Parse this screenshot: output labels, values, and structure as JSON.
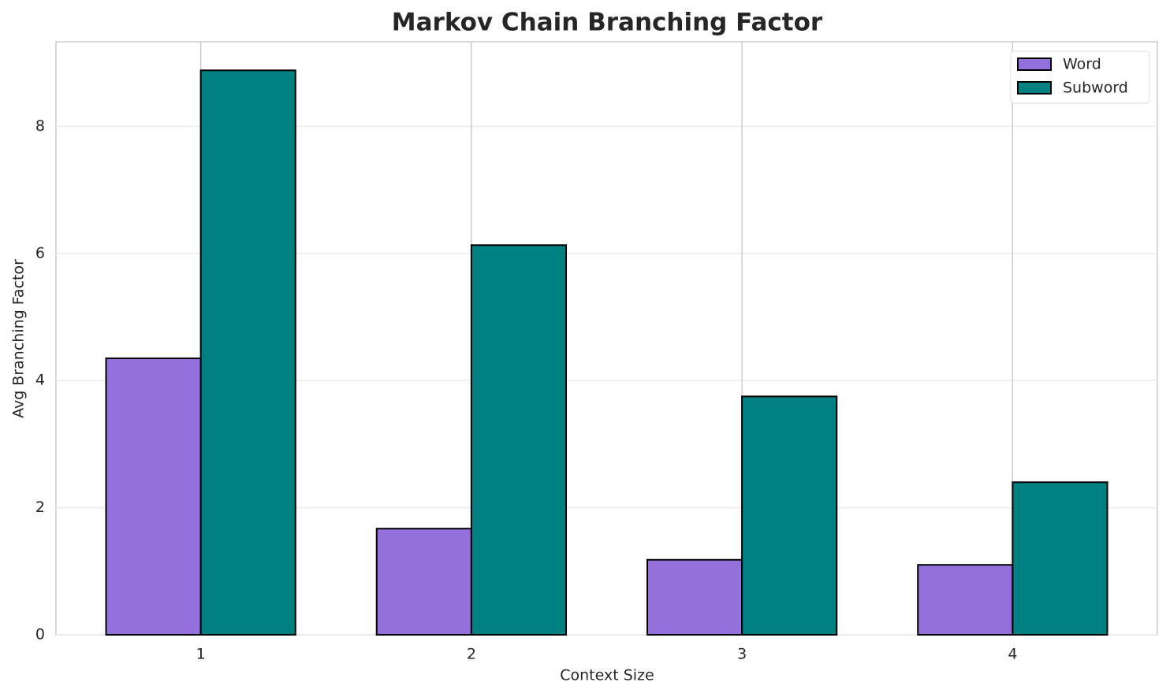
{
  "chart_data": {
    "type": "bar",
    "title": "Markov Chain Branching Factor",
    "x_label": "Context Size",
    "y_label": "Avg Branching Factor",
    "categories": [
      "1",
      "2",
      "3",
      "4"
    ],
    "series": [
      {
        "name": "Word",
        "color": "#9370db",
        "values": [
          4.35,
          1.67,
          1.18,
          1.1
        ]
      },
      {
        "name": "Subword",
        "color": "#008080",
        "values": [
          8.88,
          6.13,
          3.75,
          2.4
        ]
      }
    ],
    "ylim": [
      0,
      9.33
    ],
    "yticks": [
      0,
      2,
      4,
      6,
      8
    ],
    "grid": true,
    "legend": "upper right"
  }
}
